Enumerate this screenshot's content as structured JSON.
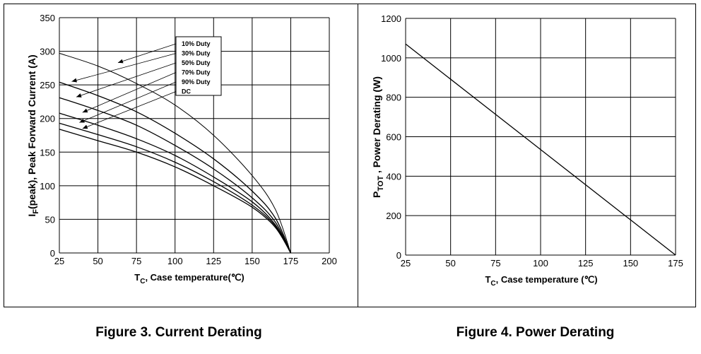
{
  "figure3": {
    "caption": "Figure 3. Current Derating",
    "xlabel_prefix": "T",
    "xlabel_sub": "C",
    "xlabel_rest": ", Case temperature(℃)",
    "ylabel_prefix": "I",
    "ylabel_sub": "F",
    "ylabel_rest": "(peak), Peak Forward Current (A)",
    "legend": [
      "10% Duty",
      "30% Duty",
      "50% Duty",
      "70% Duty",
      "90% Duty",
      "DC"
    ]
  },
  "figure4": {
    "caption": "Figure 4. Power Derating",
    "xlabel_prefix": "T",
    "xlabel_sub": "C",
    "xlabel_rest": ", Case temperature (℃)",
    "ylabel_prefix": "P",
    "ylabel_sub": "TOT",
    "ylabel_rest": " , Power Derating (W)"
  },
  "chart_data": [
    {
      "type": "line",
      "title": "Figure 3. Current Derating",
      "xlabel": "TC, Case temperature(℃)",
      "ylabel": "IF(peak), Peak Forward Current (A)",
      "xlim": [
        25,
        200
      ],
      "ylim": [
        0,
        350
      ],
      "xticks": [
        25,
        50,
        75,
        100,
        125,
        150,
        175,
        200
      ],
      "yticks": [
        0,
        50,
        100,
        150,
        200,
        250,
        300,
        350
      ],
      "grid": true,
      "legend_position": "top-center",
      "series": [
        {
          "name": "10% Duty",
          "x": [
            25,
            50,
            75,
            100,
            125,
            150,
            165,
            175
          ],
          "y": [
            297,
            278,
            252,
            220,
            175,
            115,
            65,
            0
          ]
        },
        {
          "name": "30% Duty",
          "x": [
            25,
            50,
            75,
            100,
            125,
            150,
            165,
            175
          ],
          "y": [
            254,
            234,
            210,
            178,
            140,
            92,
            52,
            0
          ]
        },
        {
          "name": "50% Duty",
          "x": [
            25,
            50,
            75,
            100,
            125,
            150,
            165,
            175
          ],
          "y": [
            231,
            212,
            190,
            160,
            125,
            82,
            46,
            0
          ]
        },
        {
          "name": "70% Duty",
          "x": [
            25,
            50,
            75,
            100,
            125,
            150,
            165,
            175
          ],
          "y": [
            208,
            190,
            170,
            145,
            113,
            76,
            42,
            0
          ]
        },
        {
          "name": "90% Duty",
          "x": [
            25,
            50,
            75,
            100,
            125,
            150,
            165,
            175
          ],
          "y": [
            193,
            176,
            158,
            135,
            106,
            71,
            40,
            0
          ]
        },
        {
          "name": "DC",
          "x": [
            25,
            50,
            75,
            100,
            125,
            150,
            165,
            175
          ],
          "y": [
            184,
            167,
            150,
            128,
            100,
            68,
            38,
            0
          ]
        }
      ]
    },
    {
      "type": "line",
      "title": "Figure 4. Power Derating",
      "xlabel": "TC, Case temperature (℃)",
      "ylabel": "PTOT , Power Derating (W)",
      "xlim": [
        25,
        175
      ],
      "ylim": [
        0,
        1200
      ],
      "xticks": [
        25,
        50,
        75,
        100,
        125,
        150,
        175
      ],
      "yticks": [
        0,
        200,
        400,
        600,
        800,
        1000,
        1200
      ],
      "grid": true,
      "series": [
        {
          "x": [
            25,
            175
          ],
          "y": [
            1070,
            0
          ]
        }
      ]
    }
  ]
}
